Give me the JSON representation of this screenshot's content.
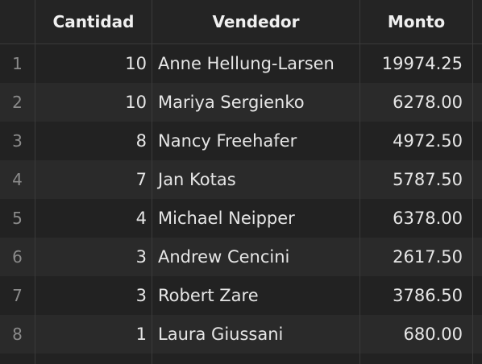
{
  "table": {
    "columns": [
      "Cantidad",
      "Vendedor",
      "Monto"
    ],
    "rows": [
      {
        "index": "1",
        "cantidad": "10",
        "vendedor": "Anne Hellung-Larsen",
        "monto": "19974.25"
      },
      {
        "index": "2",
        "cantidad": "10",
        "vendedor": "Mariya Sergienko",
        "monto": "6278.00"
      },
      {
        "index": "3",
        "cantidad": "8",
        "vendedor": "Nancy Freehafer",
        "monto": "4972.50"
      },
      {
        "index": "4",
        "cantidad": "7",
        "vendedor": "Jan Kotas",
        "monto": "5787.50"
      },
      {
        "index": "5",
        "cantidad": "4",
        "vendedor": "Michael Neipper",
        "monto": "6378.00"
      },
      {
        "index": "6",
        "cantidad": "3",
        "vendedor": "Andrew Cencini",
        "monto": "2617.50"
      },
      {
        "index": "7",
        "cantidad": "3",
        "vendedor": "Robert Zare",
        "monto": "3786.50"
      },
      {
        "index": "8",
        "cantidad": "1",
        "vendedor": "Laura Giussani",
        "monto": "680.00"
      }
    ]
  },
  "colors": {
    "background": "#1e1e1e",
    "row_odd": "#222222",
    "row_even": "#2a2a2a",
    "grid_line": "#3a3a3a",
    "text": "#e6e6e6",
    "index_text": "#8a8a8a"
  }
}
